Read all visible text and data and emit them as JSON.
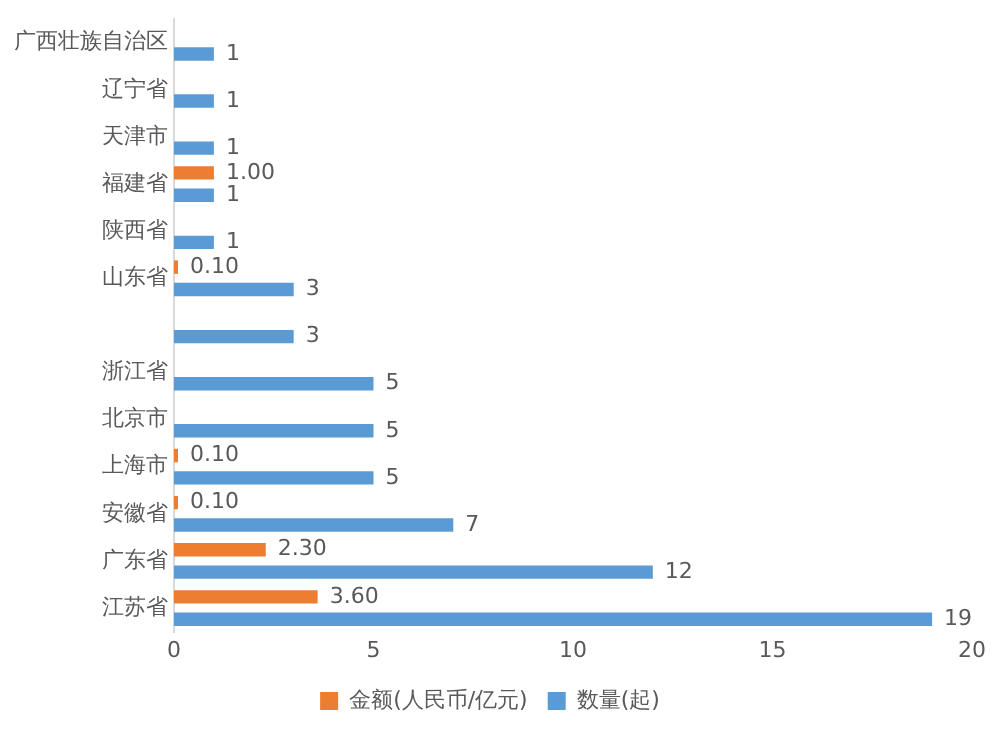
{
  "chart_data": {
    "type": "bar",
    "orientation": "horizontal",
    "categories": [
      "广西壮族自治区",
      "辽宁省",
      "天津市",
      "福建省",
      "陕西省",
      "山东省",
      null,
      "浙江省",
      "北京市",
      "上海市",
      "安徽省",
      "广东省",
      "江苏省"
    ],
    "series": [
      {
        "name": "金额(人民币/亿元)",
        "color": "#ed7d31",
        "values": [
          null,
          null,
          null,
          1.0,
          null,
          0.1,
          null,
          null,
          null,
          0.1,
          0.1,
          2.3,
          3.6
        ],
        "value_labels": [
          null,
          null,
          null,
          "1.00",
          null,
          "0.10",
          null,
          null,
          null,
          "0.10",
          "0.10",
          "2.30",
          "3.60"
        ]
      },
      {
        "name": "数量(起)",
        "color": "#5b9bd5",
        "values": [
          1,
          1,
          1,
          1,
          1,
          3,
          3,
          5,
          5,
          5,
          7,
          12,
          19
        ],
        "value_labels": [
          "1",
          "1",
          "1",
          "1",
          "1",
          "3",
          "3",
          "5",
          "5",
          "5",
          "7",
          "12",
          "19"
        ]
      }
    ],
    "xlim": [
      0,
      20
    ],
    "xticks": [
      0,
      5,
      10,
      15,
      20
    ],
    "grid": false,
    "legend": "bottom"
  }
}
